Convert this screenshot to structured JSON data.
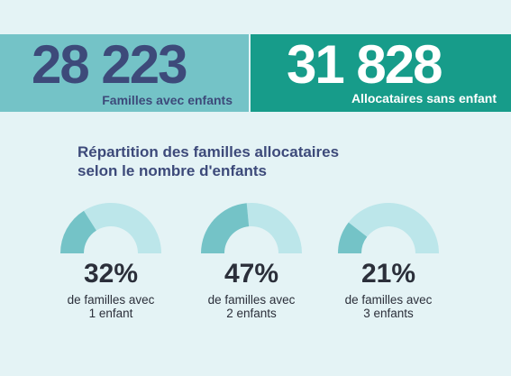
{
  "colors": {
    "background": "#e4f3f5",
    "left_band": "#74c3c7",
    "right_band": "#179c8a",
    "navy_text": "#3d4a7a",
    "gauge_fill": "#74c3c7",
    "gauge_track": "#bce6ea"
  },
  "header": {
    "families_with_children": {
      "value": "28 223",
      "label": "Familles avec enfants"
    },
    "recipients_without_child": {
      "value": "31 828",
      "label": "Allocataires sans enfant"
    }
  },
  "section": {
    "title_line1": "Répartition des familles allocataires",
    "title_line2": "selon le nombre d'enfants"
  },
  "stats": [
    {
      "percent_text": "32%",
      "percent": 32,
      "desc_line1": "de familles avec",
      "desc_line2": "1 enfant"
    },
    {
      "percent_text": "47%",
      "percent": 47,
      "desc_line1": "de familles avec",
      "desc_line2": "2 enfants"
    },
    {
      "percent_text": "21%",
      "percent": 21,
      "desc_line1": "de familles avec",
      "desc_line2": "3 enfants"
    }
  ]
}
